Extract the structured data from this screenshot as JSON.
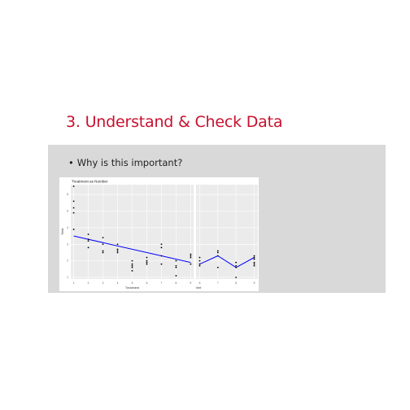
{
  "slide": {
    "title": "3. Understand & Check Data",
    "bullet": "Why is this important?"
  },
  "colors": {
    "title": "#c8102e",
    "panel_background": "#ebebeb",
    "gridline": "#ffffff",
    "line": "#0000ff",
    "points": "#000000",
    "box": "#d9d9d9"
  },
  "chart_data": [
    {
      "type": "scatter",
      "title": "Treatment as Number",
      "xlabel": "Treatment",
      "ylabel": "Yield",
      "x_ticks": [
        "1",
        "2",
        "3",
        "4",
        "5",
        "6",
        "7",
        "8",
        "9"
      ],
      "y_ticks": [
        "1",
        "2",
        "3",
        "4",
        "5",
        "6"
      ],
      "xlim": [
        0.8,
        9.2
      ],
      "ylim": [
        0.9,
        6.6
      ],
      "grid": true,
      "points": [
        [
          1,
          6.5
        ],
        [
          1,
          5.6
        ],
        [
          1,
          5.2
        ],
        [
          1,
          4.9
        ],
        [
          1,
          3.9
        ],
        [
          2,
          3.6
        ],
        [
          2,
          3.3
        ],
        [
          2,
          3.2
        ],
        [
          2,
          2.8
        ],
        [
          3,
          3.4
        ],
        [
          3,
          3.0
        ],
        [
          3,
          2.6
        ],
        [
          3,
          2.5
        ],
        [
          4,
          3.0
        ],
        [
          4,
          2.7
        ],
        [
          4,
          2.6
        ],
        [
          4,
          2.5
        ],
        [
          5,
          2.0
        ],
        [
          5,
          1.8
        ],
        [
          5,
          1.7
        ],
        [
          5,
          1.6
        ],
        [
          5,
          1.4
        ],
        [
          6,
          2.2
        ],
        [
          6,
          2.0
        ],
        [
          6,
          1.9
        ],
        [
          6,
          1.8
        ],
        [
          7,
          3.0
        ],
        [
          7,
          2.8
        ],
        [
          7,
          2.3
        ],
        [
          7,
          1.8
        ],
        [
          8,
          2.0
        ],
        [
          8,
          1.7
        ],
        [
          8,
          1.6
        ],
        [
          8,
          1.1
        ],
        [
          9,
          2.4
        ],
        [
          9,
          2.3
        ],
        [
          9,
          2.2
        ],
        [
          9,
          1.8
        ]
      ],
      "line": [
        [
          1,
          3.5
        ],
        [
          9,
          1.9
        ]
      ]
    },
    {
      "type": "scatter",
      "title": "",
      "xlabel": "Vert",
      "ylabel": "",
      "x_ticks": [
        "6",
        "7",
        "8",
        "9"
      ],
      "xlim": [
        5.8,
        9.2
      ],
      "ylim": [
        0.9,
        6.6
      ],
      "grid": true,
      "points": [
        [
          6,
          2.2
        ],
        [
          6,
          2.0
        ],
        [
          6,
          1.8
        ],
        [
          6,
          1.7
        ],
        [
          7,
          2.6
        ],
        [
          7,
          2.5
        ],
        [
          7,
          2.3
        ],
        [
          7,
          1.6
        ],
        [
          8,
          1.9
        ],
        [
          8,
          1.7
        ],
        [
          8,
          1.6
        ],
        [
          8,
          1.0
        ],
        [
          9,
          2.3
        ],
        [
          9,
          2.2
        ],
        [
          9,
          2.1
        ],
        [
          9,
          1.9
        ],
        [
          9,
          1.8
        ],
        [
          9,
          1.7
        ]
      ],
      "line": [
        [
          6,
          1.8
        ],
        [
          7,
          2.3
        ],
        [
          8,
          1.6
        ],
        [
          9,
          2.2
        ]
      ]
    }
  ]
}
